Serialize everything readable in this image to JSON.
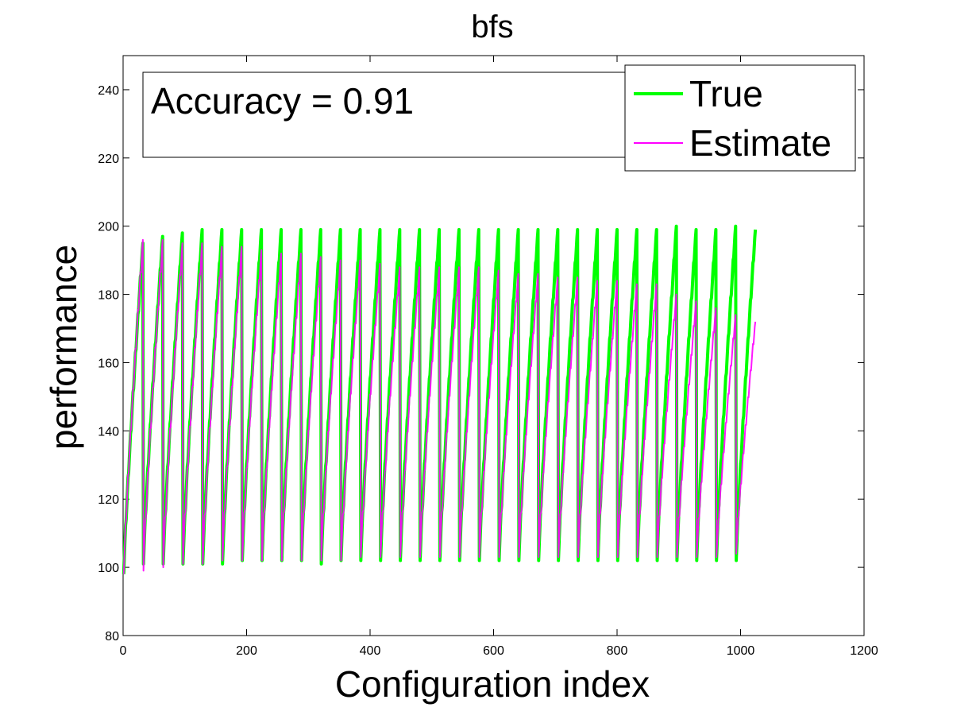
{
  "chart_data": {
    "type": "line",
    "title": "bfs",
    "xlabel": "Configuration index",
    "ylabel": "performance",
    "xlim": [
      0,
      1200
    ],
    "ylim": [
      80,
      250
    ],
    "xticks": [
      0,
      200,
      400,
      600,
      800,
      1000,
      1200
    ],
    "yticks": [
      80,
      100,
      120,
      140,
      160,
      180,
      200,
      220,
      240
    ],
    "xtick_labels": [
      "0",
      "200",
      "400",
      "600",
      "800",
      "1000",
      "1200"
    ],
    "ytick_labels": [
      "80",
      "100",
      "120",
      "140",
      "160",
      "180",
      "200",
      "220",
      "240"
    ],
    "grid": false,
    "legend_position": "top-right",
    "annotation": "Accuracy = 0.91",
    "num_configurations": 1024,
    "cycles": 32,
    "cycle_length": 32,
    "series": [
      {
        "name": "True",
        "color": "#00ff00",
        "line_width": "thick",
        "cycle_min": [
          98,
          101,
          101,
          101,
          101,
          101,
          102,
          102,
          102,
          102,
          101,
          102,
          102,
          102,
          102,
          102,
          102,
          102,
          102,
          102,
          102,
          102,
          102,
          102,
          102,
          102,
          102,
          102,
          102,
          102,
          102,
          102
        ],
        "cycle_max": [
          195,
          197,
          198,
          199,
          199,
          199,
          199,
          199,
          199,
          199,
          199,
          199,
          199,
          199,
          199,
          199,
          199,
          199,
          199,
          199,
          199,
          199,
          199,
          199,
          199,
          199,
          199,
          200,
          199,
          199,
          200,
          199
        ]
      },
      {
        "name": "Estimate",
        "color": "#ff00ff",
        "line_width": "thin",
        "cycle_min": [
          98,
          99,
          100,
          101,
          101,
          102,
          102,
          102,
          102,
          102,
          102,
          102,
          103,
          103,
          103,
          103,
          103,
          103,
          103,
          103,
          103,
          103,
          103,
          103,
          103,
          103,
          103,
          103,
          103,
          103,
          103,
          104
        ],
        "cycle_max": [
          196,
          196,
          195,
          195,
          194,
          194,
          193,
          192,
          192,
          191,
          190,
          190,
          189,
          188,
          188,
          188,
          188,
          188,
          187,
          186,
          186,
          185,
          185,
          184,
          184,
          183,
          183,
          180,
          178,
          176,
          174,
          172
        ]
      }
    ]
  }
}
